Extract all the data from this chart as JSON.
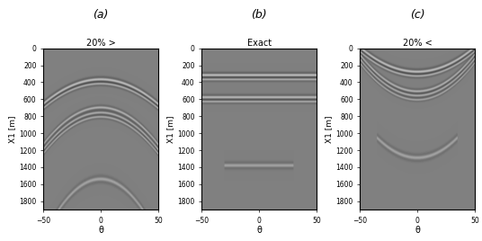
{
  "panels": [
    {
      "title": "20% >",
      "label": "(a)"
    },
    {
      "title": "Exact",
      "label": "(b)"
    },
    {
      "title": "20% <",
      "label": "(c)"
    }
  ],
  "xlabel": "θ",
  "ylabel": "X1 [m]",
  "xlim": [
    -50,
    50
  ],
  "ylim": [
    1900,
    0
  ],
  "yticks": [
    0,
    200,
    400,
    600,
    800,
    1000,
    1200,
    1400,
    1600,
    1800
  ],
  "xticks": [
    -50,
    0,
    50
  ],
  "panel_a": {
    "reflectors": [
      {
        "depth_m": 370,
        "curvature": 0.006,
        "amp": 0.18,
        "sigma_m": 22
      },
      {
        "depth_m": 420,
        "curvature": 0.006,
        "amp": 0.14,
        "sigma_m": 18
      },
      {
        "depth_m": 700,
        "curvature": 0.009,
        "amp": 0.14,
        "sigma_m": 20
      },
      {
        "depth_m": 760,
        "curvature": 0.009,
        "amp": 0.13,
        "sigma_m": 18
      },
      {
        "depth_m": 810,
        "curvature": 0.009,
        "amp": 0.12,
        "sigma_m": 17
      },
      {
        "depth_m": 1540,
        "curvature": 0.014,
        "amp": 0.1,
        "sigma_m": 30
      }
    ]
  },
  "panel_b": {
    "reflectors": [
      {
        "depth_m": 320,
        "curvature": 0.0,
        "amp": 0.18,
        "sigma_m": 22
      },
      {
        "depth_m": 370,
        "curvature": 0.0,
        "amp": 0.14,
        "sigma_m": 18
      },
      {
        "depth_m": 580,
        "curvature": 0.0,
        "amp": 0.16,
        "sigma_m": 22
      },
      {
        "depth_m": 630,
        "curvature": 0.0,
        "amp": 0.13,
        "sigma_m": 18
      },
      {
        "depth_m": 1380,
        "curvature": 0.0,
        "amp": 0.1,
        "sigma_m": 28,
        "xlimit": 30
      }
    ]
  },
  "panel_c": {
    "reflectors": [
      {
        "depth_m": 280,
        "curvature": -0.006,
        "amp": 0.18,
        "sigma_m": 22
      },
      {
        "depth_m": 330,
        "curvature": -0.006,
        "amp": 0.14,
        "sigma_m": 18
      },
      {
        "depth_m": 510,
        "curvature": -0.009,
        "amp": 0.14,
        "sigma_m": 20
      },
      {
        "depth_m": 560,
        "curvature": -0.009,
        "amp": 0.13,
        "sigma_m": 18
      },
      {
        "depth_m": 610,
        "curvature": -0.009,
        "amp": 0.11,
        "sigma_m": 16
      },
      {
        "depth_m": 1290,
        "curvature": -0.01,
        "amp": 0.1,
        "sigma_m": 30,
        "xlimit": 35
      }
    ]
  },
  "depth_max": 1900,
  "n_depth": 500,
  "n_theta": 120
}
